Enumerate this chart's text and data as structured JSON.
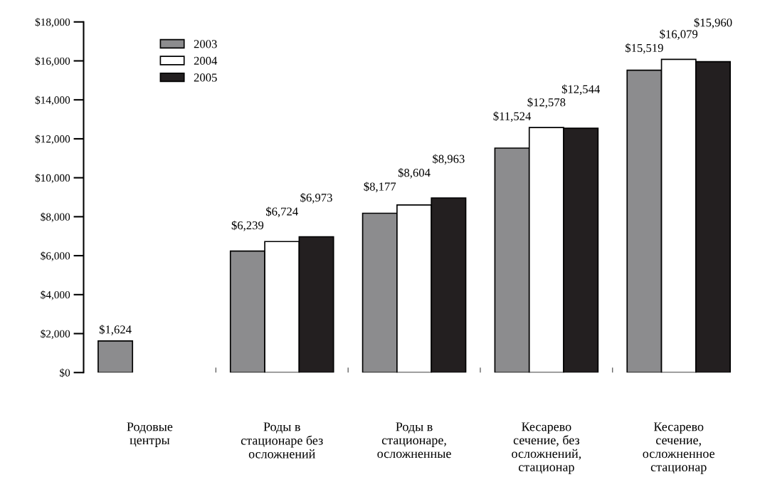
{
  "chart_data": {
    "type": "bar",
    "categories": [
      "Родовые\nцентры",
      "Роды в\nстационаре без\nосложнений",
      "Роды в\nстационаре,\nосложненные",
      "Кесарево\nсечение, без\nосложнений,\nстационар",
      "Кесарево\nсечение,\nосложненное\nстационар"
    ],
    "series": [
      {
        "name": "2003",
        "color": "#8c8c8e",
        "values": [
          1624,
          6239,
          8177,
          11524,
          15519
        ],
        "value_labels": [
          "$1,624",
          "$6,239",
          "$8,177",
          "$11,524",
          "$15,519"
        ]
      },
      {
        "name": "2004",
        "color": "#ffffff",
        "values": [
          null,
          6724,
          8604,
          12578,
          16079
        ],
        "value_labels": [
          null,
          "$6,724",
          "$8,604",
          "$12,578",
          "$16,079"
        ]
      },
      {
        "name": "2005",
        "color": "#231f20",
        "values": [
          null,
          6973,
          8963,
          12544,
          15960
        ],
        "value_labels": [
          null,
          "$6,973",
          "$8,963",
          "$12,544",
          "$15,960"
        ]
      }
    ],
    "ylim": [
      0,
      18000
    ],
    "yticks": [
      {
        "value": 0,
        "label": "$0"
      },
      {
        "value": 2000,
        "label": "$2,000"
      },
      {
        "value": 4000,
        "label": "$4,000"
      },
      {
        "value": 6000,
        "label": "$6,000"
      },
      {
        "value": 8000,
        "label": "$8,000"
      },
      {
        "value": 10000,
        "label": "$10,000"
      },
      {
        "value": 12000,
        "label": "$12,000"
      },
      {
        "value": 14000,
        "label": "$14,000"
      },
      {
        "value": 16000,
        "label": "$16,000"
      },
      {
        "value": 18000,
        "label": "$18,000"
      }
    ],
    "legend": "top left",
    "grid": false
  }
}
